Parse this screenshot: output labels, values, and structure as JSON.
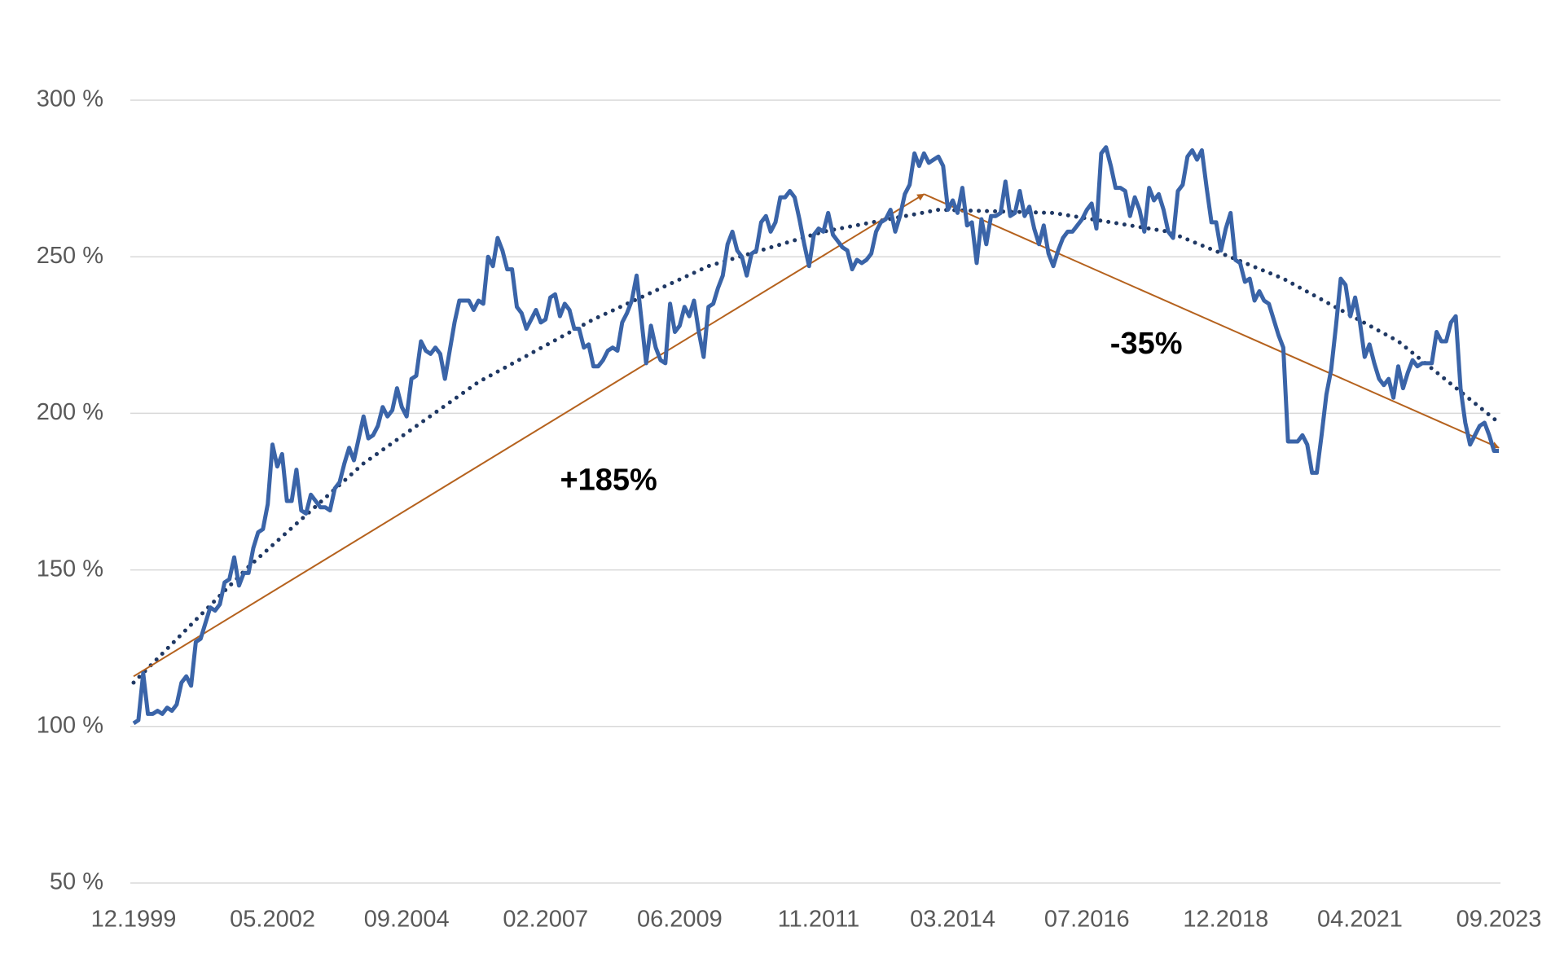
{
  "chart_data": {
    "type": "line",
    "ylim": [
      50,
      300
    ],
    "yticks": [
      {
        "value": 50,
        "label": "50 %"
      },
      {
        "value": 100,
        "label": "100 %"
      },
      {
        "value": 150,
        "label": "150 %"
      },
      {
        "value": 200,
        "label": "200 %"
      },
      {
        "value": 250,
        "label": "250 %"
      },
      {
        "value": 300,
        "label": "300 %"
      }
    ],
    "grid": true,
    "categories": [
      "12.1999",
      null,
      null,
      null,
      null,
      null,
      null,
      null,
      null,
      null,
      null,
      null,
      null,
      null,
      null,
      null,
      null,
      null,
      null,
      null,
      null,
      null,
      null,
      null,
      null,
      null,
      null,
      null,
      null,
      "05.2002",
      null,
      null,
      null,
      null,
      null,
      null,
      null,
      null,
      null,
      null,
      null,
      null,
      null,
      null,
      null,
      null,
      null,
      null,
      null,
      null,
      null,
      null,
      null,
      null,
      null,
      null,
      null,
      "09.2004",
      null,
      null,
      null,
      null,
      null,
      null,
      null,
      null,
      null,
      null,
      null,
      null,
      null,
      null,
      null,
      null,
      null,
      null,
      null,
      null,
      null,
      null,
      null,
      null,
      null,
      null,
      null,
      null,
      "02.2007",
      null,
      null,
      null,
      null,
      null,
      null,
      null,
      null,
      null,
      null,
      null,
      null,
      null,
      null,
      null,
      null,
      null,
      null,
      null,
      null,
      null,
      null,
      null,
      null,
      null,
      null,
      null,
      "06.2009",
      null,
      null,
      null,
      null,
      null,
      null,
      null,
      null,
      null,
      null,
      null,
      null,
      null,
      null,
      null,
      null,
      null,
      null,
      null,
      null,
      null,
      null,
      null,
      null,
      null,
      null,
      null,
      null,
      "11.2011",
      null,
      null,
      null,
      null,
      null,
      null,
      null,
      null,
      null,
      null,
      null,
      null,
      null,
      null,
      null,
      null,
      null,
      null,
      null,
      null,
      null,
      null,
      null,
      null,
      null,
      null,
      null,
      "03.2014",
      null,
      null,
      null,
      null,
      null,
      null,
      null,
      null,
      null,
      null,
      null,
      null,
      null,
      null,
      null,
      null,
      null,
      null,
      null,
      null,
      null,
      null,
      null,
      null,
      null,
      null,
      null,
      "07.2016",
      null,
      null,
      null,
      null,
      null,
      null,
      null,
      null,
      null,
      null,
      null,
      null,
      null,
      null,
      null,
      null,
      null,
      null,
      null,
      null,
      null,
      null,
      null,
      null,
      null,
      null,
      null,
      null,
      "12.2018",
      null,
      null,
      null,
      null,
      null,
      null,
      null,
      null,
      null,
      null,
      null,
      null,
      null,
      null,
      null,
      null,
      null,
      null,
      null,
      null,
      null,
      null,
      null,
      null,
      null,
      null,
      null,
      "04.2021",
      null,
      null,
      null,
      null,
      null,
      null,
      null,
      null,
      null,
      null,
      null,
      null,
      null,
      null,
      null,
      null,
      null,
      null,
      null,
      null,
      null,
      null,
      null,
      null,
      null,
      null,
      null,
      null,
      "09.2023"
    ],
    "series": [
      {
        "color": "#3a64a8",
        "values": [
          101,
          102,
          117,
          104,
          104,
          105,
          104,
          106,
          105,
          107,
          114,
          116,
          113,
          127,
          128,
          133,
          138,
          137,
          139,
          146,
          147,
          154,
          145,
          149,
          149,
          157,
          162,
          163,
          171,
          190,
          183,
          187,
          172,
          172,
          182,
          169,
          168,
          174,
          172,
          170,
          170,
          169,
          176,
          178,
          184,
          189,
          185,
          192,
          199,
          192,
          193,
          196,
          202,
          199,
          201,
          208,
          202,
          199,
          211,
          212,
          223,
          220,
          219,
          221,
          219,
          211,
          220,
          229,
          236,
          236,
          236,
          233,
          236,
          235,
          250,
          247,
          256,
          252,
          246,
          246,
          234,
          232,
          227,
          230,
          233,
          229,
          230,
          237,
          238,
          231,
          235,
          233,
          227,
          227,
          221,
          222,
          215,
          215,
          217,
          220,
          221,
          220,
          229,
          232,
          236,
          244,
          230,
          216,
          228,
          221,
          217,
          216,
          235,
          226,
          228,
          234,
          231,
          236,
          226,
          218,
          234,
          235,
          240,
          244,
          254,
          258,
          252,
          250,
          244,
          251,
          252,
          261,
          263,
          258,
          261,
          269,
          269,
          271,
          269,
          262,
          254,
          247,
          257,
          259,
          258,
          264,
          257,
          255,
          253,
          252,
          246,
          249,
          248,
          249,
          251,
          258,
          261,
          262,
          265,
          258,
          263,
          270,
          273,
          283,
          279,
          283,
          280,
          281,
          282,
          279,
          265,
          268,
          264,
          272,
          260,
          261,
          248,
          262,
          254,
          263,
          263,
          264,
          274,
          263,
          264,
          271,
          263,
          266,
          259,
          254,
          260,
          251,
          247,
          252,
          256,
          258,
          258,
          260,
          262,
          265,
          267,
          259,
          283,
          285,
          279,
          272,
          272,
          271,
          263,
          269,
          265,
          258,
          272,
          268,
          270,
          265,
          258,
          256,
          271,
          273,
          282,
          284,
          281,
          284,
          272,
          261,
          261,
          252,
          259,
          264,
          249,
          248,
          242,
          243,
          236,
          239,
          236,
          235,
          230,
          225,
          221,
          191,
          191,
          191,
          193,
          190,
          181,
          181,
          193,
          206,
          214,
          228,
          243,
          241,
          231,
          237,
          229,
          218,
          222,
          216,
          211,
          209,
          211,
          205,
          215,
          208,
          213,
          217,
          215,
          216,
          216,
          216,
          226,
          223,
          223,
          229,
          231,
          208,
          197,
          190,
          193,
          196,
          197,
          193,
          188,
          188
        ]
      }
    ],
    "trend": {
      "color": "#1f3864",
      "style": "dotted",
      "x": [
        "12.1999",
        "12.2001",
        "12.2003",
        "12.2005",
        "12.2007",
        "12.2009",
        "12.2011",
        "12.2013",
        "12.2015",
        "12.2017",
        "12.2019",
        "12.2021",
        "09.2023"
      ],
      "values": [
        114,
        151,
        184,
        210,
        230,
        247,
        258,
        265,
        264,
        258,
        243,
        223,
        197
      ]
    },
    "annotations": [
      {
        "text": "+185%",
        "color": "#b5621e",
        "from": {
          "x": "12.1999",
          "y": 116
        },
        "to": {
          "x": "09.2013",
          "y": 270
        }
      },
      {
        "text": "-35%",
        "color": "#b5621e",
        "from": {
          "x": "09.2013",
          "y": 270
        },
        "to": {
          "x": "09.2023",
          "y": 189
        }
      }
    ]
  }
}
